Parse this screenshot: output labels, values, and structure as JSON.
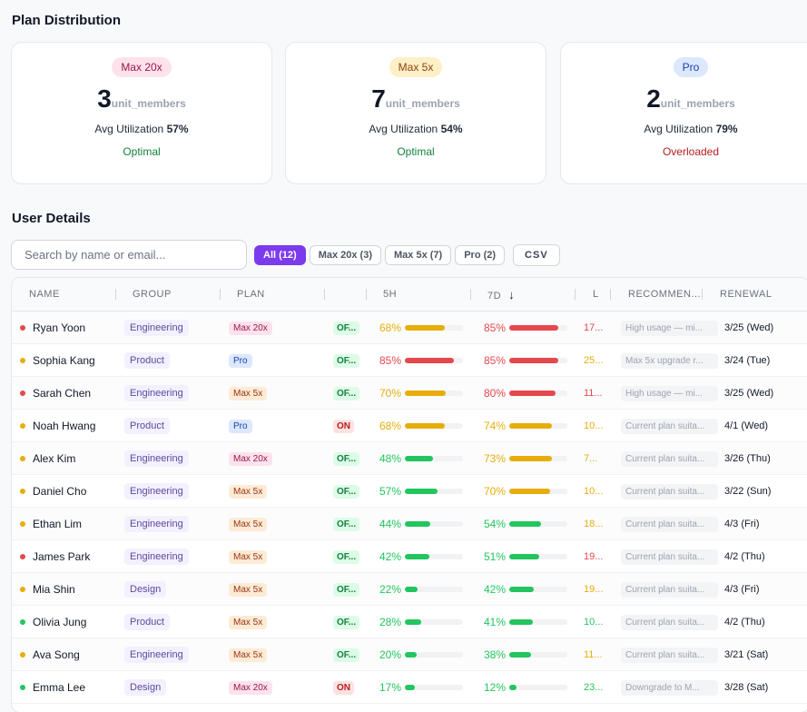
{
  "plan_distribution": {
    "title": "Plan Distribution",
    "unit": "unit_members",
    "util_label": "Avg Utilization",
    "cards": [
      {
        "plan": "Max 20x",
        "count": "3",
        "util": "57%",
        "status": "Optimal",
        "pill_bg": "#fde2ec",
        "pill_fg": "#9d174d",
        "status_color": "#15803d"
      },
      {
        "plan": "Max 5x",
        "count": "7",
        "util": "54%",
        "status": "Optimal",
        "pill_bg": "#fdf0c6",
        "pill_fg": "#92400e",
        "status_color": "#15803d"
      },
      {
        "plan": "Pro",
        "count": "2",
        "util": "79%",
        "status": "Overloaded",
        "pill_bg": "#dbe8fd",
        "pill_fg": "#1e40af",
        "status_color": "#b91c1c"
      }
    ]
  },
  "user_details": {
    "title": "User Details",
    "search_placeholder": "Search by name or email...",
    "filters": [
      {
        "label": "All (12)",
        "active": true
      },
      {
        "label": "Max 20x (3)",
        "active": false
      },
      {
        "label": "Max 5x (7)",
        "active": false
      },
      {
        "label": "Pro (2)",
        "active": false
      }
    ],
    "csv_label": "CSV",
    "sort_icon": "arrow-down-icon",
    "columns": [
      "NAME",
      "GROUP",
      "PLAN",
      "",
      "5H",
      "7D",
      "L",
      "RECOMMEN...",
      "RENEWAL"
    ],
    "colors": {
      "red": "#e5484d",
      "yellow": "#e7ad0b",
      "green": "#22c55e"
    },
    "rows": [
      {
        "name": "Ryan Yoon",
        "dot": "red",
        "group": "Engineering",
        "plan": "Max 20x",
        "switch": "OF...",
        "h5": 68,
        "h5c": "yellow",
        "d7": 85,
        "d7c": "red",
        "l": "17...",
        "lc": "red",
        "rec": "High usage — mi...",
        "renewal": "3/25 (Wed)"
      },
      {
        "name": "Sophia Kang",
        "dot": "yellow",
        "group": "Product",
        "plan": "Pro",
        "switch": "OF...",
        "h5": 85,
        "h5c": "red",
        "d7": 85,
        "d7c": "red",
        "l": "25...",
        "lc": "yellow",
        "rec": "Max 5x upgrade r...",
        "renewal": "3/24 (Tue)"
      },
      {
        "name": "Sarah Chen",
        "dot": "red",
        "group": "Engineering",
        "plan": "Max 5x",
        "switch": "OF...",
        "h5": 70,
        "h5c": "yellow",
        "d7": 80,
        "d7c": "red",
        "l": "11...",
        "lc": "red",
        "rec": "High usage — mi...",
        "renewal": "3/25 (Wed)"
      },
      {
        "name": "Noah Hwang",
        "dot": "yellow",
        "group": "Product",
        "plan": "Pro",
        "switch": "ON",
        "h5": 68,
        "h5c": "yellow",
        "d7": 74,
        "d7c": "yellow",
        "l": "10...",
        "lc": "yellow",
        "rec": "Current plan suita...",
        "renewal": "4/1 (Wed)"
      },
      {
        "name": "Alex Kim",
        "dot": "yellow",
        "group": "Engineering",
        "plan": "Max 20x",
        "switch": "OF...",
        "h5": 48,
        "h5c": "green",
        "d7": 73,
        "d7c": "yellow",
        "l": "7...",
        "lc": "yellow",
        "rec": "Current plan suita...",
        "renewal": "3/26 (Thu)"
      },
      {
        "name": "Daniel Cho",
        "dot": "yellow",
        "group": "Engineering",
        "plan": "Max 5x",
        "switch": "OF...",
        "h5": 57,
        "h5c": "green",
        "d7": 70,
        "d7c": "yellow",
        "l": "10...",
        "lc": "yellow",
        "rec": "Current plan suita...",
        "renewal": "3/22 (Sun)"
      },
      {
        "name": "Ethan Lim",
        "dot": "yellow",
        "group": "Engineering",
        "plan": "Max 5x",
        "switch": "OF...",
        "h5": 44,
        "h5c": "green",
        "d7": 54,
        "d7c": "green",
        "l": "18...",
        "lc": "yellow",
        "rec": "Current plan suita...",
        "renewal": "4/3 (Fri)"
      },
      {
        "name": "James Park",
        "dot": "red",
        "group": "Engineering",
        "plan": "Max 5x",
        "switch": "OF...",
        "h5": 42,
        "h5c": "green",
        "d7": 51,
        "d7c": "green",
        "l": "19...",
        "lc": "red",
        "rec": "Current plan suita...",
        "renewal": "4/2 (Thu)"
      },
      {
        "name": "Mia Shin",
        "dot": "yellow",
        "group": "Design",
        "plan": "Max 5x",
        "switch": "OF...",
        "h5": 22,
        "h5c": "green",
        "d7": 42,
        "d7c": "green",
        "l": "19...",
        "lc": "yellow",
        "rec": "Current plan suita...",
        "renewal": "4/3 (Fri)"
      },
      {
        "name": "Olivia Jung",
        "dot": "green",
        "group": "Product",
        "plan": "Max 5x",
        "switch": "OF...",
        "h5": 28,
        "h5c": "green",
        "d7": 41,
        "d7c": "green",
        "l": "10...",
        "lc": "green",
        "rec": "Current plan suita...",
        "renewal": "4/2 (Thu)"
      },
      {
        "name": "Ava Song",
        "dot": "yellow",
        "group": "Engineering",
        "plan": "Max 5x",
        "switch": "OF...",
        "h5": 20,
        "h5c": "green",
        "d7": 38,
        "d7c": "green",
        "l": "11...",
        "lc": "yellow",
        "rec": "Current plan suita...",
        "renewal": "3/21 (Sat)"
      },
      {
        "name": "Emma Lee",
        "dot": "green",
        "group": "Design",
        "plan": "Max 20x",
        "switch": "ON",
        "h5": 17,
        "h5c": "green",
        "d7": 12,
        "d7c": "green",
        "l": "23...",
        "lc": "green",
        "rec": "Downgrade to M...",
        "renewal": "3/28 (Sat)"
      }
    ]
  }
}
